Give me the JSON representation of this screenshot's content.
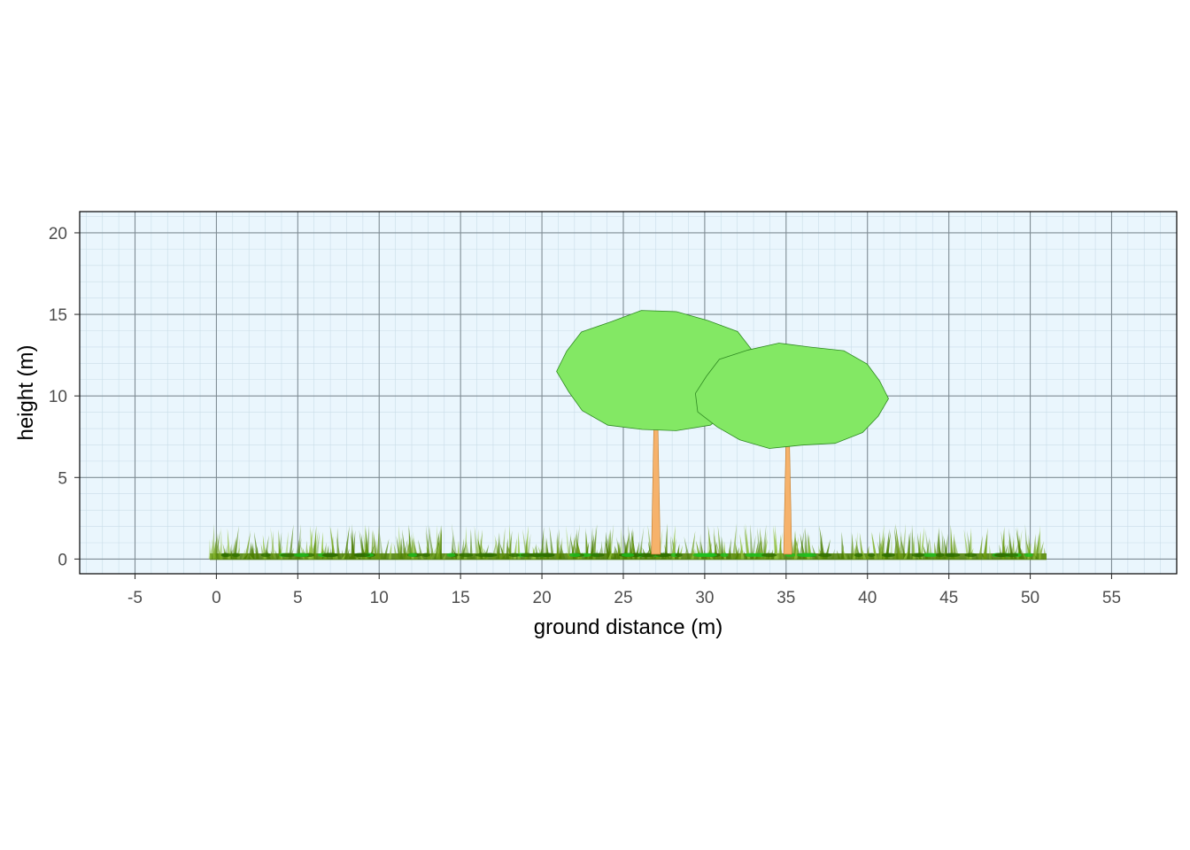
{
  "chart_data": {
    "type": "scatter",
    "title": "",
    "xlabel": "ground distance (m)",
    "ylabel": "height (m)",
    "xlim": [
      -8.4,
      59
    ],
    "ylim": [
      -0.9,
      21.3
    ],
    "x_ticks": [
      -5,
      0,
      5,
      10,
      15,
      20,
      25,
      30,
      35,
      40,
      45,
      50,
      55
    ],
    "y_ticks": [
      0,
      5,
      10,
      15,
      20
    ],
    "x_tick_labels": [
      "-5",
      "0",
      "5",
      "10",
      "15",
      "20",
      "25",
      "30",
      "35",
      "40",
      "45",
      "50",
      "55"
    ],
    "y_tick_labels": [
      "0",
      "5",
      "10",
      "15",
      "20"
    ],
    "grid": true,
    "legend": "none",
    "trees": [
      {
        "x": 27.0,
        "trunk_base_width": 0.55,
        "trunk_top_width": 0.25,
        "crown_base_height": 7.7,
        "crown_top_height": 15.3,
        "crown_left": 20.9,
        "crown_right": 33.5
      },
      {
        "x": 35.1,
        "trunk_base_width": 0.5,
        "trunk_top_width": 0.22,
        "crown_base_height": 6.7,
        "crown_top_height": 13.3,
        "crown_left": 29.3,
        "crown_right": 41.3
      }
    ],
    "grass_range": [
      -0.4,
      51.0
    ],
    "grass_max_height": 2.2,
    "colors": {
      "panel_background": "#eaf6fd",
      "major_grid": "#7f8c94",
      "minor_grid": "#c9dde8",
      "crown_fill": "#83e864",
      "crown_stroke": "#2f8a22",
      "trunk_fill": "#f6b26b",
      "trunk_stroke": "#c07a2a",
      "grass_dark": "#4a7d00",
      "grass_light": "#8fbf3a",
      "grass_bright": "#1fbf1f"
    }
  }
}
